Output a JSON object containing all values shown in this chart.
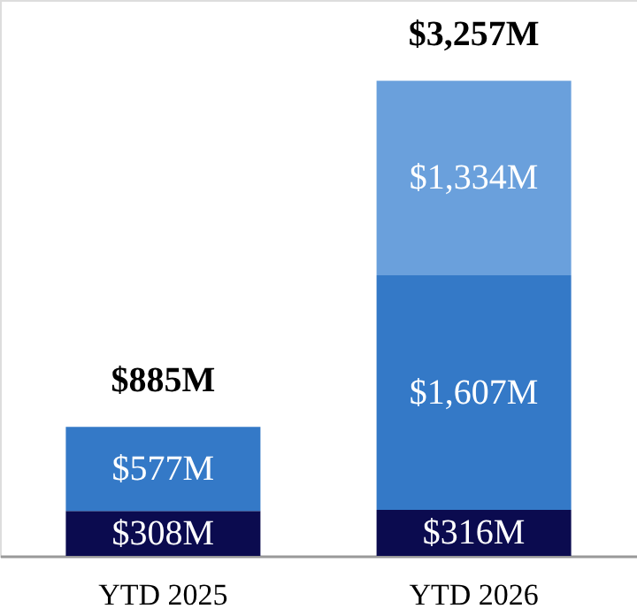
{
  "chart_data": {
    "type": "bar",
    "stacked": true,
    "categories": [
      "YTD 2025",
      "YTD 2026"
    ],
    "series": [
      {
        "color": "#0b0b4f",
        "values": [
          308,
          316
        ],
        "value_labels": [
          "$308M",
          "$316M"
        ]
      },
      {
        "color": "#3479c7",
        "values": [
          577,
          1607
        ],
        "value_labels": [
          "$577M",
          "$1,607M"
        ]
      },
      {
        "color": "#6aa0dc",
        "values": [
          null,
          1334
        ],
        "value_labels": [
          null,
          "$1,334M"
        ]
      }
    ],
    "totals": [
      "$885M",
      "$3,257M"
    ]
  }
}
